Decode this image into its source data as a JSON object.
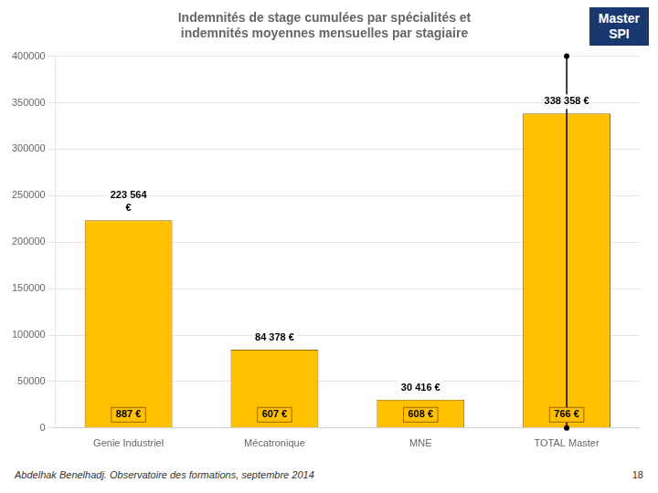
{
  "chart_data": {
    "type": "bar",
    "title": "Indemnités de stage cumulées par spécialités et\nindemnités moyennes mensuelles par stagiaire",
    "badge": "Master\nSPI",
    "categories": [
      "Genie Industriel",
      "Mécatronique",
      "MNE",
      "TOTAL Master"
    ],
    "values": [
      223564,
      84378,
      30416,
      338358
    ],
    "value_labels": [
      "223 564\n€",
      "84 378 €",
      "30 416 €",
      "338 358 €"
    ],
    "data_labels": true,
    "color": "#FFC000",
    "annotations": [
      {
        "category": "Genie Industriel",
        "text": "887 €"
      },
      {
        "category": "Mécatronique",
        "text": "607 €"
      },
      {
        "category": "MNE",
        "text": "608 €"
      },
      {
        "category": "TOTAL Master",
        "text": "766 €"
      }
    ],
    "vline": {
      "category": "TOTAL Master",
      "from": 0,
      "to": 400000
    },
    "ylim": [
      0,
      400000
    ],
    "yticks": [
      0,
      50000,
      100000,
      150000,
      200000,
      250000,
      300000,
      350000,
      400000
    ],
    "grid": true,
    "footer": "Abdelhak Benelhadj. Observatoire des formations, septembre 2014",
    "page_number": "18"
  }
}
